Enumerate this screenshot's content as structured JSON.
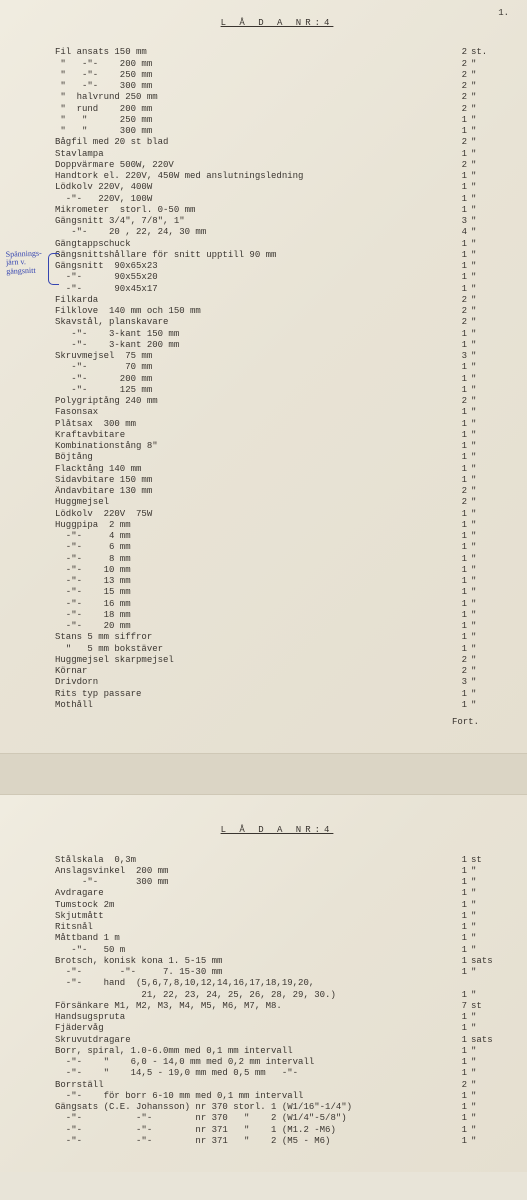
{
  "page_number": "1.",
  "title": "L Å D A  NR:4",
  "annotation_text": "Spännings-\njärn v.\ngängsnitt",
  "fort": "Fort.",
  "page1_rows": [
    {
      "d": "Fil ansats 150 mm",
      "q": "2",
      "u": "st."
    },
    {
      "d": " \"   -\"-    200 mm",
      "q": "2",
      "u": "\""
    },
    {
      "d": " \"   -\"-    250 mm",
      "q": "2",
      "u": "\""
    },
    {
      "d": " \"   -\"-    300 mm",
      "q": "2",
      "u": "\""
    },
    {
      "d": " \"  halvrund 250 mm",
      "q": "2",
      "u": "\""
    },
    {
      "d": " \"  rund    200 mm",
      "q": "2",
      "u": "\""
    },
    {
      "d": " \"   \"      250 mm",
      "q": "1",
      "u": "\""
    },
    {
      "d": " \"   \"      300 mm",
      "q": "1",
      "u": "\""
    },
    {
      "d": "Bågfil med 20 st blad",
      "q": "2",
      "u": "\""
    },
    {
      "d": "Stavlampa",
      "q": "1",
      "u": "\""
    },
    {
      "d": "Doppvärmare 500W, 220V",
      "q": "2",
      "u": "\""
    },
    {
      "d": "Handtork el. 220V, 450W med anslutningsledning",
      "q": "1",
      "u": "\""
    },
    {
      "d": "Lödkolv 220V, 400W",
      "q": "1",
      "u": "\""
    },
    {
      "d": "  -\"-   220V, 100W",
      "q": "1",
      "u": "\""
    },
    {
      "d": "Mikrometer  storl. 0-50 mm",
      "q": "1",
      "u": "\""
    },
    {
      "d": "Gängsnitt 3/4\", 7/8\", 1\"",
      "q": "3",
      "u": "\""
    },
    {
      "d": "   -\"-    20 , 22, 24, 30 mm",
      "q": "4",
      "u": "\""
    },
    {
      "d": "Gängtappschuck",
      "q": "1",
      "u": "\""
    },
    {
      "d": "Gängsnittshållare för snitt upptill 90 mm",
      "q": "1",
      "u": "\""
    },
    {
      "d": "Gängsnitt  90x65x23",
      "q": "1",
      "u": "\""
    },
    {
      "d": "  -\"-      90x55x20",
      "q": "1",
      "u": "\""
    },
    {
      "d": "  -\"-      90x45x17",
      "q": "1",
      "u": "\""
    },
    {
      "d": "Filkarda",
      "q": "2",
      "u": "\""
    },
    {
      "d": "Filklove  140 mm och 150 mm",
      "q": "2",
      "u": "\""
    },
    {
      "d": "Skavstål, planskavare",
      "q": "2",
      "u": "\""
    },
    {
      "d": "   -\"-    3-kant 150 mm",
      "q": "1",
      "u": "\""
    },
    {
      "d": "   -\"-    3-kant 200 mm",
      "q": "1",
      "u": "\""
    },
    {
      "d": "Skruvmejsel  75 mm",
      "q": "3",
      "u": "\""
    },
    {
      "d": "   -\"-       70 mm",
      "q": "1",
      "u": "\""
    },
    {
      "d": "   -\"-      200 mm",
      "q": "1",
      "u": "\""
    },
    {
      "d": "   -\"-      125 mm",
      "q": "1",
      "u": "\""
    },
    {
      "d": "Polygriptång 240 mm",
      "q": "2",
      "u": "\""
    },
    {
      "d": "Fasonsax",
      "q": "1",
      "u": "\""
    },
    {
      "d": "Plåtsax  300 mm",
      "q": "1",
      "u": "\""
    },
    {
      "d": "Kraftavbitare",
      "q": "1",
      "u": "\""
    },
    {
      "d": "Kombinationstång 8\"",
      "q": "1",
      "u": "\""
    },
    {
      "d": "Böjtång",
      "q": "1",
      "u": "\""
    },
    {
      "d": "Flacktång 140 mm",
      "q": "1",
      "u": "\""
    },
    {
      "d": "Sidavbitare 150 mm",
      "q": "1",
      "u": "\""
    },
    {
      "d": "Ändavbitare 130 mm",
      "q": "2",
      "u": "\""
    },
    {
      "d": "Huggmejsel",
      "q": "2",
      "u": "\""
    },
    {
      "d": "Lödkolv  220V  75W",
      "q": "1",
      "u": "\""
    },
    {
      "d": "Huggpipa  2 mm",
      "q": "1",
      "u": "\""
    },
    {
      "d": "  -\"-     4 mm",
      "q": "1",
      "u": "\""
    },
    {
      "d": "  -\"-     6 mm",
      "q": "1",
      "u": "\""
    },
    {
      "d": "  -\"-     8 mm",
      "q": "1",
      "u": "\""
    },
    {
      "d": "  -\"-    10 mm",
      "q": "1",
      "u": "\""
    },
    {
      "d": "  -\"-    13 mm",
      "q": "1",
      "u": "\""
    },
    {
      "d": "  -\"-    15 mm",
      "q": "1",
      "u": "\""
    },
    {
      "d": "  -\"-    16 mm",
      "q": "1",
      "u": "\""
    },
    {
      "d": "  -\"-    18 mm",
      "q": "1",
      "u": "\""
    },
    {
      "d": "  -\"-    20 mm",
      "q": "1",
      "u": "\""
    },
    {
      "d": "Stans 5 mm siffror",
      "q": "1",
      "u": "\""
    },
    {
      "d": "  \"   5 mm bokstäver",
      "q": "1",
      "u": "\""
    },
    {
      "d": "Huggmejsel skarpmejsel",
      "q": "2",
      "u": "\""
    },
    {
      "d": "Körnar",
      "q": "2",
      "u": "\""
    },
    {
      "d": "Drivdorn",
      "q": "3",
      "u": "\""
    },
    {
      "d": "Rits typ passare",
      "q": "1",
      "u": "\""
    },
    {
      "d": "Mothåll",
      "q": "1",
      "u": "\""
    }
  ],
  "page2_rows": [
    {
      "d": "Stålskala  0,3m",
      "q": "1",
      "u": "st"
    },
    {
      "d": "Anslagsvinkel  200 mm",
      "q": "1",
      "u": "\""
    },
    {
      "d": "     -\"-       300 mm",
      "q": "1",
      "u": "\""
    },
    {
      "d": "Avdragare",
      "q": "1",
      "u": "\""
    },
    {
      "d": "Tumstock 2m",
      "q": "1",
      "u": "\""
    },
    {
      "d": "Skjutmått",
      "q": "1",
      "u": "\""
    },
    {
      "d": "Ritsnål",
      "q": "1",
      "u": "\""
    },
    {
      "d": "Måttband 1 m",
      "q": "1",
      "u": "\""
    },
    {
      "d": "   -\"-   50 m",
      "q": "1",
      "u": "\""
    },
    {
      "d": "Brotsch, konisk kona 1. 5-15 mm",
      "q": "1",
      "u": "sats"
    },
    {
      "d": "  -\"-       -\"-     7. 15-30 mm",
      "q": "1",
      "u": "\""
    },
    {
      "d": "  -\"-    hand  (5,6,7,8,10,12,14,16,17,18,19,20,",
      "q": "",
      "u": ""
    },
    {
      "d": "                21, 22, 23, 24, 25, 26, 28, 29, 30.)",
      "q": "1",
      "u": "\""
    },
    {
      "d": "Försänkare M1, M2, M3, M4, M5, M6, M7, M8.",
      "q": "7",
      "u": "st"
    },
    {
      "d": "Handsugspruta",
      "q": "1",
      "u": "\""
    },
    {
      "d": "Fjädervåg",
      "q": "1",
      "u": "\""
    },
    {
      "d": "Skruvutdragare",
      "q": "1",
      "u": "sats"
    },
    {
      "d": "Borr, spiral, 1.0-6.0mm med 0,1 mm intervall",
      "q": "1",
      "u": "\""
    },
    {
      "d": "  -\"-    \"    6,0 - 14,0 mm med 0,2 mm intervall",
      "q": "1",
      "u": "\""
    },
    {
      "d": "  -\"-    \"    14,5 - 19,0 mm med 0,5 mm   -\"-",
      "q": "1",
      "u": "\""
    },
    {
      "d": "Borrställ",
      "q": "2",
      "u": "\""
    },
    {
      "d": "  -\"-    för borr 6-10 mm med 0,1 mm intervall",
      "q": "1",
      "u": "\""
    },
    {
      "d": "Gängsats (C.E. Johansson) nr 370 storl. 1 (W1/16\"-1/4\")",
      "q": "1",
      "u": "\""
    },
    {
      "d": "  -\"-          -\"-        nr 370   \"    2 (W1/4\"-5/8\")",
      "q": "1",
      "u": "\""
    },
    {
      "d": "  -\"-          -\"-        nr 371   \"    1 (M1.2 -M6)",
      "q": "1",
      "u": "\""
    },
    {
      "d": "  -\"-          -\"-        nr 371   \"    2 (M5 - M6)",
      "q": "1",
      "u": "\""
    }
  ]
}
